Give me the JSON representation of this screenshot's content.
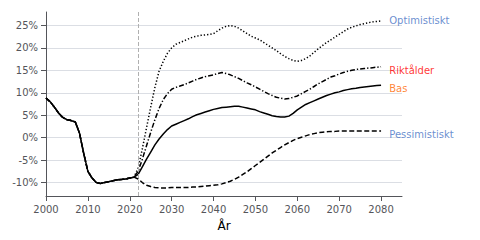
{
  "chart_data": {
    "type": "line",
    "xlabel": "År",
    "x": [
      2000,
      2001,
      2002,
      2003,
      2004,
      2005,
      2006,
      2007,
      2008,
      2009,
      2010,
      2011,
      2012,
      2013,
      2014,
      2015,
      2016,
      2017,
      2018,
      2019,
      2020,
      2021,
      2022,
      2023,
      2024,
      2025,
      2026,
      2027,
      2028,
      2029,
      2030,
      2031,
      2032,
      2033,
      2034,
      2035,
      2036,
      2037,
      2038,
      2039,
      2040,
      2041,
      2042,
      2043,
      2044,
      2045,
      2046,
      2047,
      2048,
      2049,
      2050,
      2051,
      2052,
      2053,
      2054,
      2055,
      2056,
      2057,
      2058,
      2059,
      2060,
      2061,
      2062,
      2063,
      2064,
      2065,
      2066,
      2067,
      2068,
      2069,
      2070,
      2071,
      2072,
      2073,
      2074,
      2075,
      2076,
      2077,
      2078,
      2079,
      2080
    ],
    "series": [
      {
        "name": "Bas",
        "color": "#000000",
        "line_style": "solid",
        "values": [
          0.088,
          0.08,
          0.068,
          0.055,
          0.045,
          0.04,
          0.038,
          0.035,
          0.01,
          -0.035,
          -0.075,
          -0.09,
          -0.1,
          -0.102,
          -0.1,
          -0.098,
          -0.096,
          -0.094,
          -0.093,
          -0.092,
          -0.09,
          -0.088,
          -0.082,
          -0.065,
          -0.048,
          -0.032,
          -0.016,
          -0.003,
          0.008,
          0.018,
          0.026,
          0.03,
          0.034,
          0.038,
          0.042,
          0.047,
          0.051,
          0.054,
          0.057,
          0.06,
          0.063,
          0.065,
          0.067,
          0.068,
          0.069,
          0.07,
          0.07,
          0.068,
          0.066,
          0.064,
          0.062,
          0.058,
          0.055,
          0.052,
          0.049,
          0.047,
          0.046,
          0.046,
          0.048,
          0.054,
          0.062,
          0.068,
          0.074,
          0.078,
          0.082,
          0.086,
          0.09,
          0.094,
          0.097,
          0.1,
          0.102,
          0.105,
          0.107,
          0.109,
          0.11,
          0.112,
          0.113,
          0.114,
          0.115,
          0.116,
          0.117
        ]
      },
      {
        "name": "Riktålder",
        "color": "#000000",
        "line_style": "dashdot",
        "values": [
          0.088,
          0.08,
          0.068,
          0.055,
          0.045,
          0.04,
          0.038,
          0.035,
          0.01,
          -0.035,
          -0.075,
          -0.09,
          -0.1,
          -0.102,
          -0.1,
          -0.098,
          -0.096,
          -0.094,
          -0.093,
          -0.092,
          -0.09,
          -0.088,
          -0.075,
          -0.048,
          -0.018,
          0.012,
          0.04,
          0.065,
          0.085,
          0.098,
          0.108,
          0.112,
          0.115,
          0.118,
          0.122,
          0.126,
          0.13,
          0.133,
          0.136,
          0.138,
          0.14,
          0.143,
          0.145,
          0.143,
          0.14,
          0.136,
          0.132,
          0.127,
          0.122,
          0.118,
          0.113,
          0.108,
          0.103,
          0.098,
          0.094,
          0.09,
          0.088,
          0.086,
          0.087,
          0.09,
          0.093,
          0.098,
          0.103,
          0.108,
          0.114,
          0.12,
          0.125,
          0.13,
          0.135,
          0.138,
          0.142,
          0.145,
          0.148,
          0.15,
          0.152,
          0.153,
          0.154,
          0.155,
          0.156,
          0.157,
          0.158
        ]
      },
      {
        "name": "Optimistiskt",
        "color": "#000000",
        "line_style": "dotted",
        "values": [
          0.088,
          0.08,
          0.068,
          0.055,
          0.045,
          0.04,
          0.038,
          0.035,
          0.01,
          -0.035,
          -0.075,
          -0.09,
          -0.1,
          -0.102,
          -0.1,
          -0.098,
          -0.096,
          -0.094,
          -0.093,
          -0.092,
          -0.09,
          -0.088,
          -0.068,
          -0.025,
          0.022,
          0.068,
          0.112,
          0.148,
          0.17,
          0.188,
          0.2,
          0.208,
          0.212,
          0.216,
          0.22,
          0.224,
          0.226,
          0.228,
          0.229,
          0.23,
          0.232,
          0.238,
          0.244,
          0.248,
          0.25,
          0.248,
          0.244,
          0.238,
          0.232,
          0.226,
          0.222,
          0.218,
          0.212,
          0.206,
          0.2,
          0.194,
          0.187,
          0.181,
          0.176,
          0.172,
          0.17,
          0.172,
          0.176,
          0.182,
          0.19,
          0.198,
          0.205,
          0.212,
          0.218,
          0.224,
          0.23,
          0.236,
          0.242,
          0.246,
          0.249,
          0.252,
          0.254,
          0.256,
          0.258,
          0.259,
          0.26
        ]
      },
      {
        "name": "Pessimistiskt",
        "color": "#000000",
        "line_style": "dashed",
        "values": [
          0.088,
          0.08,
          0.068,
          0.055,
          0.045,
          0.04,
          0.038,
          0.035,
          0.01,
          -0.035,
          -0.075,
          -0.09,
          -0.1,
          -0.102,
          -0.1,
          -0.098,
          -0.096,
          -0.094,
          -0.093,
          -0.092,
          -0.09,
          -0.088,
          -0.092,
          -0.1,
          -0.106,
          -0.109,
          -0.111,
          -0.112,
          -0.112,
          -0.112,
          -0.111,
          -0.111,
          -0.111,
          -0.111,
          -0.111,
          -0.11,
          -0.11,
          -0.109,
          -0.108,
          -0.107,
          -0.106,
          -0.105,
          -0.103,
          -0.1,
          -0.097,
          -0.093,
          -0.088,
          -0.082,
          -0.076,
          -0.069,
          -0.062,
          -0.055,
          -0.048,
          -0.041,
          -0.034,
          -0.028,
          -0.022,
          -0.016,
          -0.011,
          -0.006,
          -0.002,
          0.001,
          0.004,
          0.007,
          0.009,
          0.011,
          0.012,
          0.013,
          0.014,
          0.014,
          0.015,
          0.015,
          0.015,
          0.015,
          0.015,
          0.015,
          0.015,
          0.015,
          0.015,
          0.015,
          0.015
        ]
      }
    ],
    "xlim": [
      2000,
      2085
    ],
    "xticks": [
      2000,
      2010,
      2020,
      2030,
      2040,
      2050,
      2060,
      2070,
      2080
    ],
    "ylim": [
      -0.13,
      0.28
    ],
    "yticks": [
      {
        "value": -0.1,
        "label": "-10%"
      },
      {
        "value": -0.05,
        "label": "-5%"
      },
      {
        "value": 0.0,
        "label": "0%"
      },
      {
        "value": 0.05,
        "label": "5%"
      },
      {
        "value": 0.1,
        "label": "10%"
      },
      {
        "value": 0.15,
        "label": "15%"
      },
      {
        "value": 0.2,
        "label": "20%"
      },
      {
        "value": 0.25,
        "label": "25%"
      }
    ],
    "grid": "y",
    "vlines": [
      {
        "x": 2022
      }
    ],
    "annotations": [
      {
        "text": "Optimistiskt",
        "x": 2081,
        "y": 0.262,
        "color": "#4472C4"
      },
      {
        "text": "Riktålder",
        "x": 2081,
        "y": 0.15,
        "color": "#FF0000"
      },
      {
        "text": "Bas",
        "x": 2081,
        "y": 0.11,
        "color": "#FF6600"
      },
      {
        "text": "Pessimistiskt",
        "x": 2081,
        "y": 0.008,
        "color": "#4472C4"
      }
    ]
  }
}
